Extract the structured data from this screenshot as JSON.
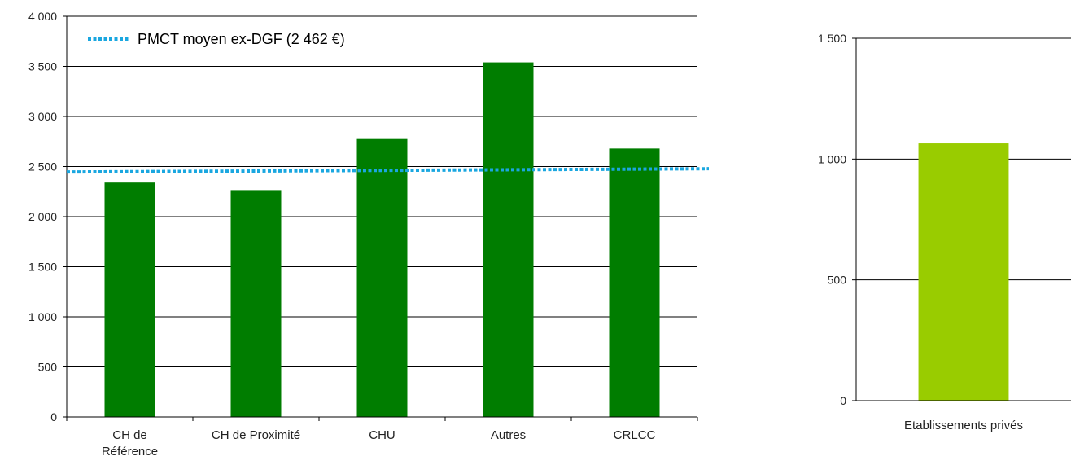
{
  "chart_data": [
    {
      "type": "bar",
      "title": "",
      "xlabel": "",
      "ylabel": "",
      "ylim": [
        0,
        4000
      ],
      "yticks": [
        "0",
        "500",
        "1 000",
        "1 500",
        "2 000",
        "2 500",
        "3 000",
        "3 500",
        "4 000"
      ],
      "yticks_values": [
        0,
        500,
        1000,
        1500,
        2000,
        2500,
        3000,
        3500,
        4000
      ],
      "categories": [
        [
          "CH de",
          "Référence"
        ],
        [
          "CH de Proximité"
        ],
        [
          "CHU"
        ],
        [
          "Autres"
        ],
        [
          "CRLCC"
        ]
      ],
      "values": [
        2340,
        2265,
        2775,
        3540,
        2680
      ],
      "bar_color": "#007d00",
      "grid": true,
      "reference_line": {
        "label": "PMCT moyen ex-DGF (2 462 €)",
        "value": 2462,
        "color": "#1aa7e0",
        "style": "dotted"
      },
      "legend_position": "top-left"
    },
    {
      "type": "bar",
      "title": "",
      "xlabel": "",
      "ylabel": "",
      "ylim": [
        0,
        1500
      ],
      "yticks": [
        "0",
        "500",
        "1 000",
        "1 500"
      ],
      "yticks_values": [
        0,
        500,
        1000,
        1500
      ],
      "categories": [
        [
          "Etablissements  privés"
        ]
      ],
      "values": [
        1065
      ],
      "bar_color": "#99cc00",
      "grid": true
    }
  ]
}
